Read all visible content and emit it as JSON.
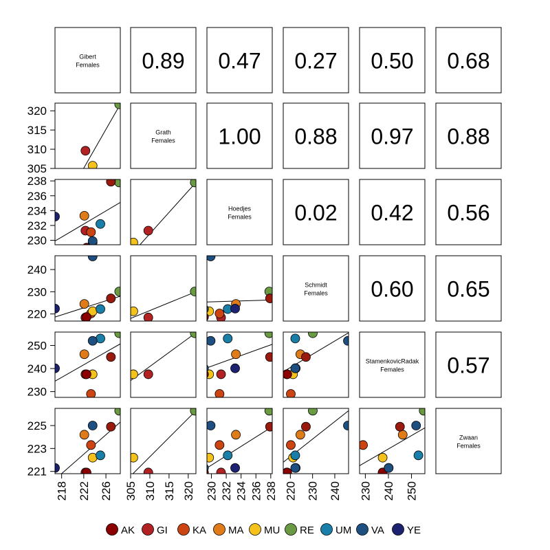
{
  "chart_data": {
    "type": "scatter-matrix",
    "variables": [
      {
        "name": "Gibert",
        "subtitle": "Females",
        "range": [
          216.8,
          228.6
        ],
        "tick_labels": [
          "218",
          "222",
          "226"
        ],
        "ticks": [
          218,
          222,
          226
        ]
      },
      {
        "name": "Grath",
        "subtitle": "Females",
        "range": [
          305,
          322
        ],
        "tick_labels": [
          "305",
          "310",
          "315",
          "320"
        ],
        "ticks": [
          305,
          310,
          315,
          320
        ]
      },
      {
        "name": "Hoedjes",
        "subtitle": "Females",
        "range": [
          229.4,
          238.2
        ],
        "tick_labels": [
          "230",
          "232",
          "234",
          "236",
          "238"
        ],
        "ticks": [
          230,
          232,
          234,
          236,
          238
        ]
      },
      {
        "name": "Schmidt",
        "subtitle": "Females",
        "range": [
          216.8,
          246.2
        ],
        "tick_labels": [
          "220",
          "230",
          "240"
        ],
        "ticks": [
          220,
          230,
          240
        ]
      },
      {
        "name": "StamenkovicRadak",
        "subtitle": "Females",
        "range": [
          227.5,
          255.8
        ],
        "tick_labels": [
          "230",
          "240",
          "250"
        ],
        "ticks": [
          230,
          240,
          250
        ]
      },
      {
        "name": "Zwaan",
        "subtitle": "Females",
        "range": [
          220.8,
          226.5
        ],
        "tick_labels": [
          "221",
          "223",
          "225"
        ],
        "ticks": [
          221,
          223,
          225
        ]
      }
    ],
    "populations": [
      {
        "code": "AK",
        "color": "#8b0000",
        "values": [
          null,
          null,
          null,
          null,
          null,
          null
        ]
      },
      {
        "code": "GI",
        "color": "#b22222",
        "values": [
          222.3,
          309.6,
          231.3,
          218.4,
          237.5,
          220.9
        ]
      },
      {
        "code": "KA",
        "color": "#cc4411",
        "values": [
          223.3,
          null,
          231.1,
          220.2,
          229.0,
          223.3
        ]
      },
      {
        "code": "MA",
        "color": "#e07b1a",
        "values": [
          222.1,
          null,
          233.3,
          224.5,
          246.2,
          224.2
        ]
      },
      {
        "code": "MU",
        "color": "#f5c21b",
        "values": [
          223.6,
          305.7,
          229.7,
          221.2,
          237.5,
          222.2
        ]
      },
      {
        "code": "RE",
        "color": "#6b9a45",
        "values": [
          228.4,
          321.7,
          237.8,
          230.1,
          255.3,
          226.3
        ]
      },
      {
        "code": "UM",
        "color": "#1a7fa8",
        "values": [
          225.0,
          null,
          232.2,
          222.2,
          253.0,
          222.4
        ]
      },
      {
        "code": "VA",
        "color": "#1d4f80",
        "values": [
          223.6,
          null,
          229.9,
          245.9,
          252.0,
          225.0
        ]
      },
      {
        "code": "YE",
        "color": "#1c2170",
        "values": [
          216.8,
          null,
          233.2,
          222.4,
          240.1,
          221.3
        ]
      },
      {
        "code": "",
        "color": "#9a1a0e",
        "values": [
          226.9,
          null,
          237.9,
          227.0,
          245.0,
          224.9
        ]
      },
      {
        "code": "",
        "color": "#8b0000",
        "values": [
          222.5,
          null,
          229.0,
          218.6,
          237.5,
          220.9
        ]
      },
      {
        "code": "",
        "color": "#1d4f80",
        "values": [
          null,
          null,
          229.0,
          222.2,
          240.1,
          221.3
        ]
      }
    ],
    "fit_lines": [
      {
        "row": 1,
        "col": 0,
        "y_at_xmin": 292.0,
        "y_at_xmax": 321.7
      },
      {
        "row": 2,
        "col": 0,
        "y_at_xmin": 229.9,
        "y_at_xmax": 235.1
      },
      {
        "row": 2,
        "col": 1,
        "y_at_xmin": 228.0,
        "y_at_xmax": 237.8
      },
      {
        "row": 3,
        "col": 0,
        "y_at_xmin": 218.6,
        "y_at_xmax": 228.0
      },
      {
        "row": 3,
        "col": 1,
        "y_at_xmin": 218.0,
        "y_at_xmax": 230.0
      },
      {
        "row": 3,
        "col": 2,
        "y_at_xmin": 225.4,
        "y_at_xmax": 226.3
      },
      {
        "row": 4,
        "col": 0,
        "y_at_xmin": 234.5,
        "y_at_xmax": 250.7
      },
      {
        "row": 4,
        "col": 1,
        "y_at_xmin": 234.8,
        "y_at_xmax": 255.5
      },
      {
        "row": 4,
        "col": 2,
        "y_at_xmin": 240.3,
        "y_at_xmax": 250.5
      },
      {
        "row": 4,
        "col": 3,
        "y_at_xmin": 238.6,
        "y_at_xmax": 255.5
      },
      {
        "row": 5,
        "col": 0,
        "y_at_xmin": 220.3,
        "y_at_xmax": 225.3
      },
      {
        "row": 5,
        "col": 1,
        "y_at_xmin": 220.6,
        "y_at_xmax": 226.3
      },
      {
        "row": 5,
        "col": 2,
        "y_at_xmin": 221.3,
        "y_at_xmax": 224.9
      },
      {
        "row": 5,
        "col": 3,
        "y_at_xmin": 221.8,
        "y_at_xmax": 226.3
      },
      {
        "row": 5,
        "col": 4,
        "y_at_xmin": 221.5,
        "y_at_xmax": 224.8
      }
    ],
    "correlations": [
      {
        "row": 0,
        "col": 1,
        "label": "0.89"
      },
      {
        "row": 0,
        "col": 2,
        "label": "0.47"
      },
      {
        "row": 0,
        "col": 3,
        "label": "0.27"
      },
      {
        "row": 0,
        "col": 4,
        "label": "0.50"
      },
      {
        "row": 0,
        "col": 5,
        "label": "0.68"
      },
      {
        "row": 1,
        "col": 2,
        "label": "1.00"
      },
      {
        "row": 1,
        "col": 3,
        "label": "0.88"
      },
      {
        "row": 1,
        "col": 4,
        "label": "0.97"
      },
      {
        "row": 1,
        "col": 5,
        "label": "0.88"
      },
      {
        "row": 2,
        "col": 3,
        "label": "0.02"
      },
      {
        "row": 2,
        "col": 4,
        "label": "0.42"
      },
      {
        "row": 2,
        "col": 5,
        "label": "0.56"
      },
      {
        "row": 3,
        "col": 4,
        "label": "0.60"
      },
      {
        "row": 3,
        "col": 5,
        "label": "0.65"
      },
      {
        "row": 4,
        "col": 5,
        "label": "0.57"
      }
    ],
    "legend": {
      "placement": "bottom",
      "items": [
        {
          "label": "AK",
          "color": "#8b0000"
        },
        {
          "label": "GI",
          "color": "#b22222"
        },
        {
          "label": "KA",
          "color": "#cc4411"
        },
        {
          "label": "MA",
          "color": "#e07b1a"
        },
        {
          "label": "MU",
          "color": "#f5c21b"
        },
        {
          "label": "RE",
          "color": "#6b9a45"
        },
        {
          "label": "UM",
          "color": "#1a7fa8"
        },
        {
          "label": "VA",
          "color": "#1d4f80"
        },
        {
          "label": "YE",
          "color": "#1c2170"
        }
      ]
    }
  }
}
